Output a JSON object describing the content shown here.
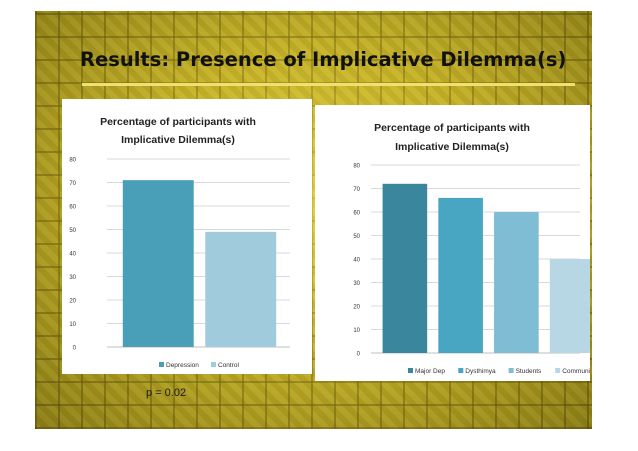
{
  "slide": {
    "title": "Results: Presence of Implicative Dilemma(s)",
    "p_value": "p = 0.02"
  },
  "colors": {
    "depression": "#4a9fb8",
    "control": "#9fcbdc",
    "major_dep": "#39869d",
    "dysthimya": "#48a6c2",
    "students": "#7fbdd4",
    "community": "#b7d7e4",
    "background": "#b9a61e"
  },
  "chart_data": [
    {
      "type": "bar",
      "title_lines": [
        "Percentage of participants with",
        "Implicative Dilemma(s)"
      ],
      "categories": [
        "Depression",
        "Control"
      ],
      "values": [
        71,
        49
      ],
      "colors": [
        "#4a9fb8",
        "#9fcbdc"
      ],
      "ylim": [
        0,
        80
      ],
      "yticks": [
        0,
        10,
        20,
        30,
        40,
        50,
        60,
        70,
        80
      ],
      "grid": true,
      "legend": "bottom",
      "legend_labels": [
        "Depression",
        "Control"
      ]
    },
    {
      "type": "bar",
      "title_lines": [
        "Percentage of participants with",
        "Implicative Dilemma(s)"
      ],
      "categories": [
        "Major Dep",
        "Dysthimya",
        "Students",
        "Community"
      ],
      "values": [
        72,
        66,
        60,
        40
      ],
      "colors": [
        "#39869d",
        "#48a6c2",
        "#7fbdd4",
        "#b7d7e4"
      ],
      "ylim": [
        0,
        80
      ],
      "yticks": [
        0,
        10,
        20,
        30,
        40,
        50,
        60,
        70,
        80
      ],
      "grid": true,
      "legend": "bottom",
      "legend_labels": [
        "Major Dep",
        "Dysthimya",
        "Students",
        "Community"
      ]
    }
  ]
}
